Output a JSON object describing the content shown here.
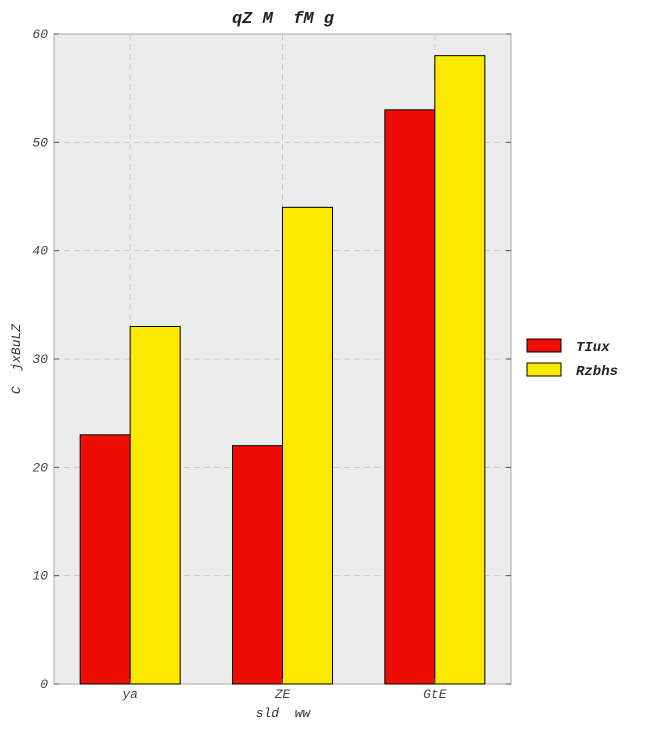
{
  "chart_data": {
    "type": "bar",
    "title": "qZ M  fM g",
    "xlabel": "sld  ww",
    "ylabel": "C  jxBuLZ",
    "categories": [
      "ya",
      "ZE",
      "GtE"
    ],
    "series": [
      {
        "name": "TIux",
        "values": [
          23,
          22,
          53
        ],
        "color": "#ee0e06"
      },
      {
        "name": "Rzbhs",
        "values": [
          33,
          44,
          58
        ],
        "color": "#fde900"
      }
    ],
    "ylim": [
      0,
      60
    ],
    "yticks": [
      0,
      10,
      20,
      30,
      40,
      50,
      60
    ],
    "grid": true,
    "legend_position": "right",
    "background": "#ececec"
  }
}
